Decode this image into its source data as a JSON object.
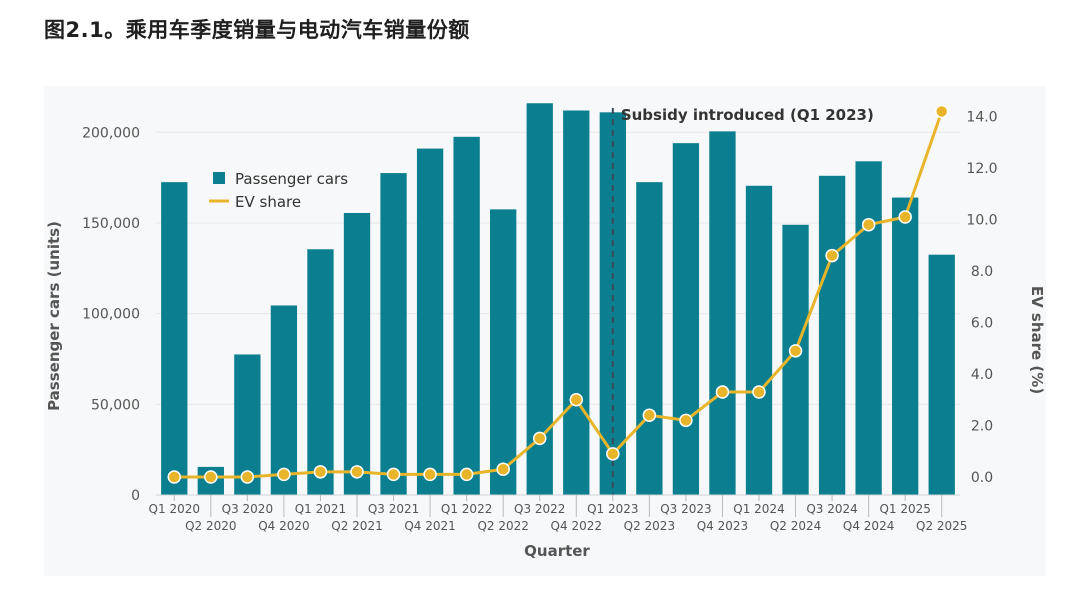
{
  "title": "图2.1。乘用车季度销量与电动汽车销量份额",
  "chart_data": {
    "type": "bar",
    "title": "图2.1。乘用车季度销量与电动汽车销量份额",
    "xlabel": "Quarter",
    "ylabel": "Passenger cars (units)",
    "y2label": "EV share (%)",
    "ylim": [
      0,
      220000
    ],
    "y2lim": [
      -0.7,
      14.8
    ],
    "yticks": [
      0,
      50000,
      100000,
      150000,
      200000
    ],
    "ytick_labels": [
      "0",
      "50,000",
      "100,000",
      "150,000",
      "200,000"
    ],
    "y2ticks": [
      0,
      2,
      4,
      6,
      8,
      10,
      12,
      14
    ],
    "y2tick_labels": [
      "0.0",
      "2.0",
      "4.0",
      "6.0",
      "8.0",
      "10.0",
      "12.0",
      "14.0"
    ],
    "categories": [
      "Q1 2020",
      "Q2 2020",
      "Q3 2020",
      "Q4 2020",
      "Q1 2021",
      "Q2 2021",
      "Q3 2021",
      "Q4 2021",
      "Q1 2022",
      "Q2 2022",
      "Q3 2022",
      "Q4 2022",
      "Q1 2023",
      "Q2 2023",
      "Q3 2023",
      "Q4 2023",
      "Q1 2024",
      "Q2 2024",
      "Q3 2024",
      "Q4 2024",
      "Q1 2025",
      "Q2 2025"
    ],
    "series": [
      {
        "name": "Passenger cars",
        "type": "bar",
        "axis": "left",
        "color": "#0b7f8f",
        "values": [
          172500,
          15500,
          77500,
          104500,
          135500,
          155500,
          177500,
          191000,
          197500,
          157500,
          216000,
          212000,
          211000,
          172500,
          194000,
          200500,
          170500,
          149000,
          176000,
          184000,
          164000,
          132500
        ]
      },
      {
        "name": "EV share",
        "type": "line",
        "axis": "right",
        "color": "#e8b52a",
        "values": [
          0.0,
          0.0,
          0.0,
          0.1,
          0.2,
          0.2,
          0.1,
          0.1,
          0.1,
          0.3,
          1.5,
          3.0,
          0.9,
          2.4,
          2.2,
          3.3,
          3.3,
          4.9,
          8.6,
          9.8,
          10.1,
          14.2
        ]
      }
    ],
    "legend": {
      "position": "upper-left",
      "bar_label": "Passenger cars",
      "line_label": "EV share"
    },
    "annotation": {
      "label": "Subsidy introduced (Q1 2023)",
      "category": "Q1 2023"
    },
    "grid": true
  }
}
